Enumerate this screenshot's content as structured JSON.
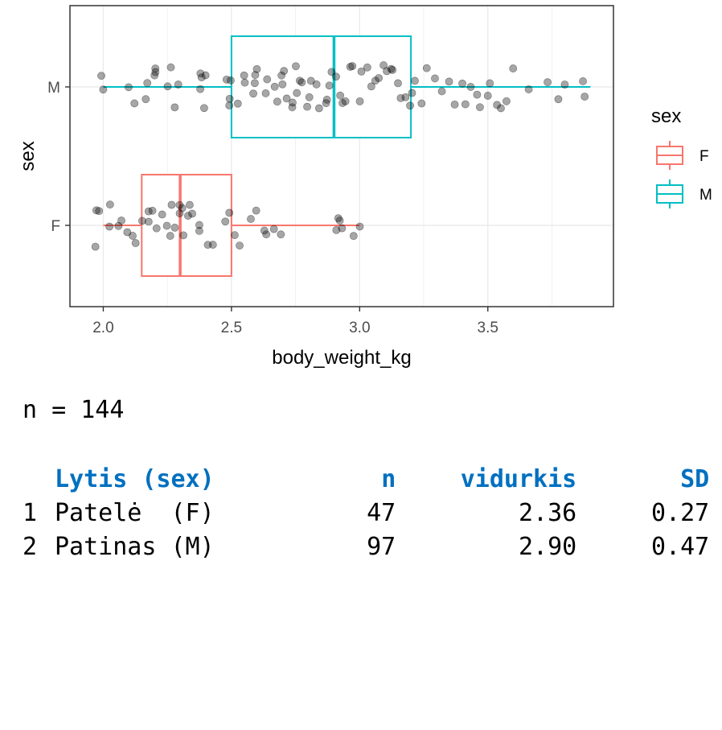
{
  "chart_data": {
    "type": "boxplot",
    "x_label": "body_weight_kg",
    "y_label": "sex",
    "xlim": [
      1.87,
      3.99
    ],
    "x_ticks": [
      "2.0",
      "2.5",
      "3.0",
      "3.5"
    ],
    "categories": [
      "M",
      "F"
    ],
    "grid": true,
    "legend": {
      "title": "sex",
      "position": "right",
      "entries": [
        "F",
        "M"
      ]
    },
    "colors": {
      "F": "#F8766D",
      "M": "#00BFC4",
      "points": "#000000"
    },
    "boxes": [
      {
        "group": "M",
        "whisker_low": 2.0,
        "q1": 2.5,
        "median": 2.9,
        "q3": 3.2,
        "whisker_high": 3.9
      },
      {
        "group": "F",
        "whisker_low": 2.0,
        "q1": 2.15,
        "median": 2.3,
        "q3": 2.5,
        "whisker_high": 3.0
      }
    ],
    "points": {
      "M": [
        2.0,
        2.0,
        2.1,
        2.13,
        2.17,
        2.17,
        2.2,
        2.2,
        2.2,
        2.25,
        2.27,
        2.27,
        2.3,
        2.37,
        2.38,
        2.38,
        2.4,
        2.4,
        2.48,
        2.5,
        2.5,
        2.5,
        2.53,
        2.55,
        2.55,
        2.58,
        2.6,
        2.6,
        2.6,
        2.63,
        2.63,
        2.67,
        2.68,
        2.7,
        2.7,
        2.7,
        2.72,
        2.73,
        2.73,
        2.75,
        2.75,
        2.77,
        2.78,
        2.8,
        2.8,
        2.82,
        2.83,
        2.85,
        2.87,
        2.88,
        2.88,
        2.9,
        2.9,
        2.92,
        2.93,
        2.95,
        2.97,
        2.98,
        3.0,
        3.0,
        3.03,
        3.05,
        3.07,
        3.08,
        3.1,
        3.1,
        3.12,
        3.13,
        3.15,
        3.17,
        3.18,
        3.2,
        3.2,
        3.22,
        3.25,
        3.27,
        3.3,
        3.33,
        3.35,
        3.37,
        3.4,
        3.42,
        3.43,
        3.45,
        3.47,
        3.5,
        3.5,
        3.53,
        3.55,
        3.57,
        3.6,
        3.65,
        3.73,
        3.77,
        3.8,
        3.87,
        3.88
      ],
      "F": [
        1.97,
        1.97,
        1.98,
        2.03,
        2.03,
        2.05,
        2.08,
        2.1,
        2.12,
        2.13,
        2.15,
        2.17,
        2.18,
        2.2,
        2.2,
        2.23,
        2.25,
        2.27,
        2.27,
        2.28,
        2.3,
        2.3,
        2.3,
        2.32,
        2.33,
        2.33,
        2.35,
        2.37,
        2.38,
        2.4,
        2.43,
        2.47,
        2.5,
        2.52,
        2.53,
        2.58,
        2.6,
        2.62,
        2.63,
        2.67,
        2.7,
        2.9,
        2.92,
        2.93,
        2.93,
        2.97,
        3.0
      ]
    }
  },
  "console": {
    "n_line": "n = 144",
    "table": {
      "headers": {
        "label": "Lytis (sex)",
        "n": "n",
        "mean": "vidurkis",
        "sd": "SD"
      },
      "rows": [
        {
          "idx": "1",
          "label": "Patelė  (F)",
          "n": "47",
          "mean": "2.36",
          "sd": "0.27"
        },
        {
          "idx": "2",
          "label": "Patinas (M)",
          "n": "97",
          "mean": "2.90",
          "sd": "0.47"
        }
      ]
    }
  }
}
